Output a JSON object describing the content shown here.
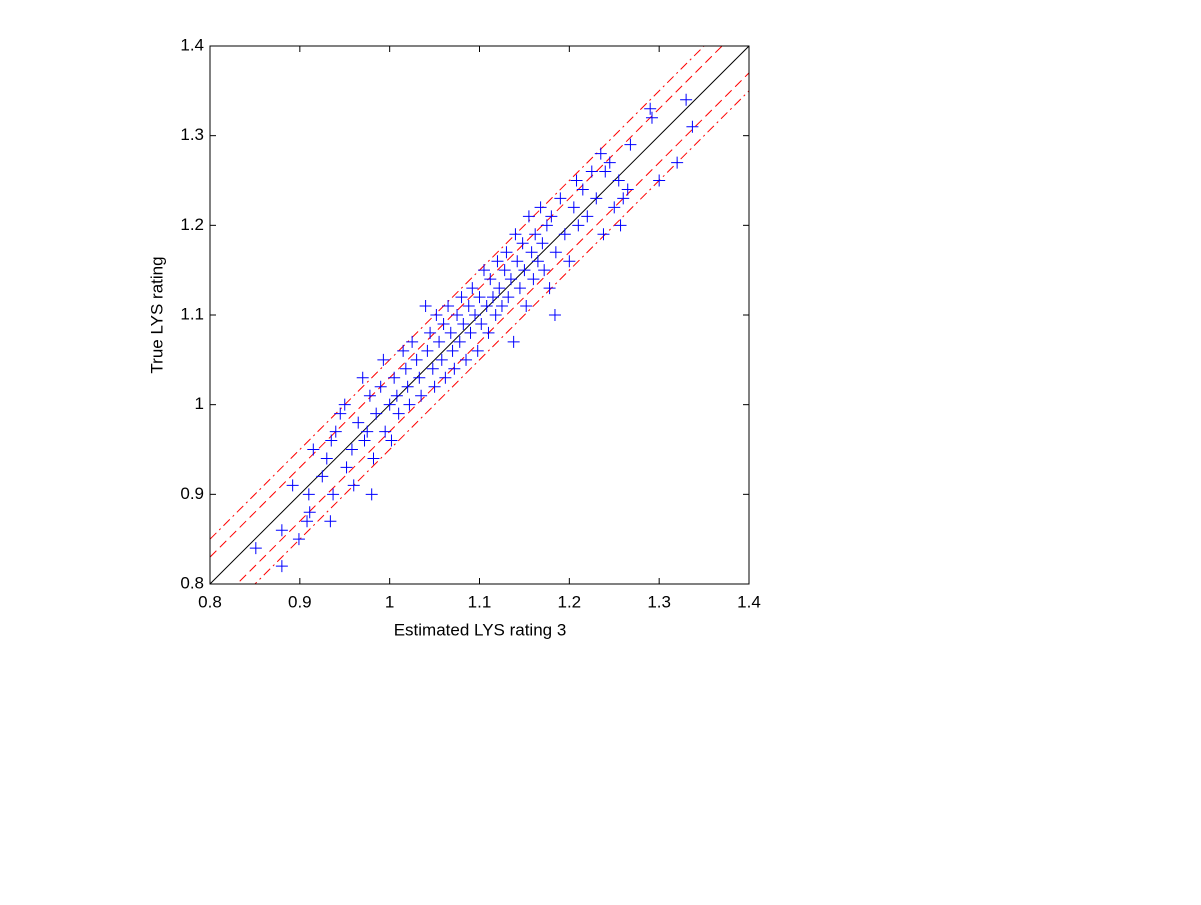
{
  "chart_data": {
    "type": "scatter",
    "xlabel": "Estimated LYS rating 3",
    "ylabel": "True LYS rating",
    "x": [
      0.851,
      0.88,
      0.88,
      0.899,
      0.892,
      0.908,
      0.911,
      0.91,
      0.934,
      0.937,
      0.98,
      0.915,
      0.925,
      0.93,
      0.935,
      0.94,
      0.945,
      0.95,
      0.952,
      0.958,
      0.96,
      0.965,
      0.97,
      0.972,
      0.975,
      0.978,
      0.982,
      0.985,
      0.99,
      0.993,
      0.995,
      1.0,
      1.002,
      1.005,
      1.008,
      1.01,
      1.015,
      1.018,
      1.02,
      1.022,
      1.025,
      1.03,
      1.033,
      1.035,
      1.04,
      1.042,
      1.045,
      1.048,
      1.05,
      1.052,
      1.055,
      1.058,
      1.06,
      1.062,
      1.065,
      1.068,
      1.07,
      1.072,
      1.075,
      1.078,
      1.08,
      1.082,
      1.085,
      1.088,
      1.09,
      1.092,
      1.095,
      1.098,
      1.1,
      1.102,
      1.105,
      1.108,
      1.11,
      1.112,
      1.115,
      1.118,
      1.12,
      1.122,
      1.125,
      1.128,
      1.13,
      1.132,
      1.135,
      1.138,
      1.14,
      1.142,
      1.145,
      1.148,
      1.15,
      1.152,
      1.155,
      1.158,
      1.16,
      1.162,
      1.165,
      1.168,
      1.17,
      1.172,
      1.175,
      1.178,
      1.18,
      1.184,
      1.185,
      1.19,
      1.195,
      1.2,
      1.205,
      1.208,
      1.21,
      1.215,
      1.22,
      1.225,
      1.23,
      1.235,
      1.238,
      1.24,
      1.245,
      1.25,
      1.255,
      1.257,
      1.26,
      1.265,
      1.268,
      1.29,
      1.292,
      1.3,
      1.32,
      1.33,
      1.337
    ],
    "series": [
      {
        "color": "#0000ff",
        "marker": "+",
        "values": [
          0.84,
          0.86,
          0.82,
          0.85,
          0.91,
          0.87,
          0.88,
          0.9,
          0.87,
          0.9,
          0.9,
          0.95,
          0.92,
          0.94,
          0.96,
          0.97,
          0.99,
          1.0,
          0.93,
          0.95,
          0.91,
          0.98,
          1.03,
          0.96,
          0.97,
          1.01,
          0.94,
          0.99,
          1.02,
          1.05,
          0.97,
          1.0,
          0.96,
          1.03,
          1.01,
          0.99,
          1.06,
          1.04,
          1.02,
          1.0,
          1.07,
          1.05,
          1.03,
          1.01,
          1.11,
          1.06,
          1.08,
          1.04,
          1.02,
          1.1,
          1.07,
          1.05,
          1.09,
          1.03,
          1.11,
          1.08,
          1.06,
          1.04,
          1.1,
          1.07,
          1.12,
          1.09,
          1.05,
          1.11,
          1.08,
          1.13,
          1.1,
          1.06,
          1.12,
          1.09,
          1.15,
          1.11,
          1.08,
          1.14,
          1.12,
          1.1,
          1.16,
          1.13,
          1.11,
          1.15,
          1.17,
          1.12,
          1.14,
          1.07,
          1.19,
          1.16,
          1.13,
          1.18,
          1.15,
          1.11,
          1.21,
          1.17,
          1.14,
          1.19,
          1.16,
          1.22,
          1.18,
          1.15,
          1.2,
          1.13,
          1.21,
          1.1,
          1.17,
          1.23,
          1.19,
          1.16,
          1.22,
          1.25,
          1.2,
          1.24,
          1.21,
          1.26,
          1.23,
          1.28,
          1.19,
          1.26,
          1.27,
          1.22,
          1.25,
          1.2,
          1.23,
          1.24,
          1.29,
          1.33,
          1.32,
          1.25,
          1.27,
          1.34,
          1.31
        ]
      }
    ],
    "reference_lines": [
      {
        "offset": 0,
        "style": "solid",
        "color": "#000000"
      },
      {
        "offset": 0.03,
        "style": "dashed",
        "color": "#ff0000"
      },
      {
        "offset": -0.03,
        "style": "dashed",
        "color": "#ff0000"
      },
      {
        "offset": 0.05,
        "style": "dashdot",
        "color": "#ff0000"
      },
      {
        "offset": -0.05,
        "style": "dashdot",
        "color": "#ff0000"
      }
    ],
    "xlim": [
      0.8,
      1.4
    ],
    "ylim": [
      0.8,
      1.4
    ],
    "xticks": [
      0.8,
      0.9,
      1,
      1.1,
      1.2,
      1.3,
      1.4
    ],
    "yticks": [
      0.8,
      0.9,
      1,
      1.1,
      1.2,
      1.3,
      1.4
    ],
    "grid": false
  }
}
